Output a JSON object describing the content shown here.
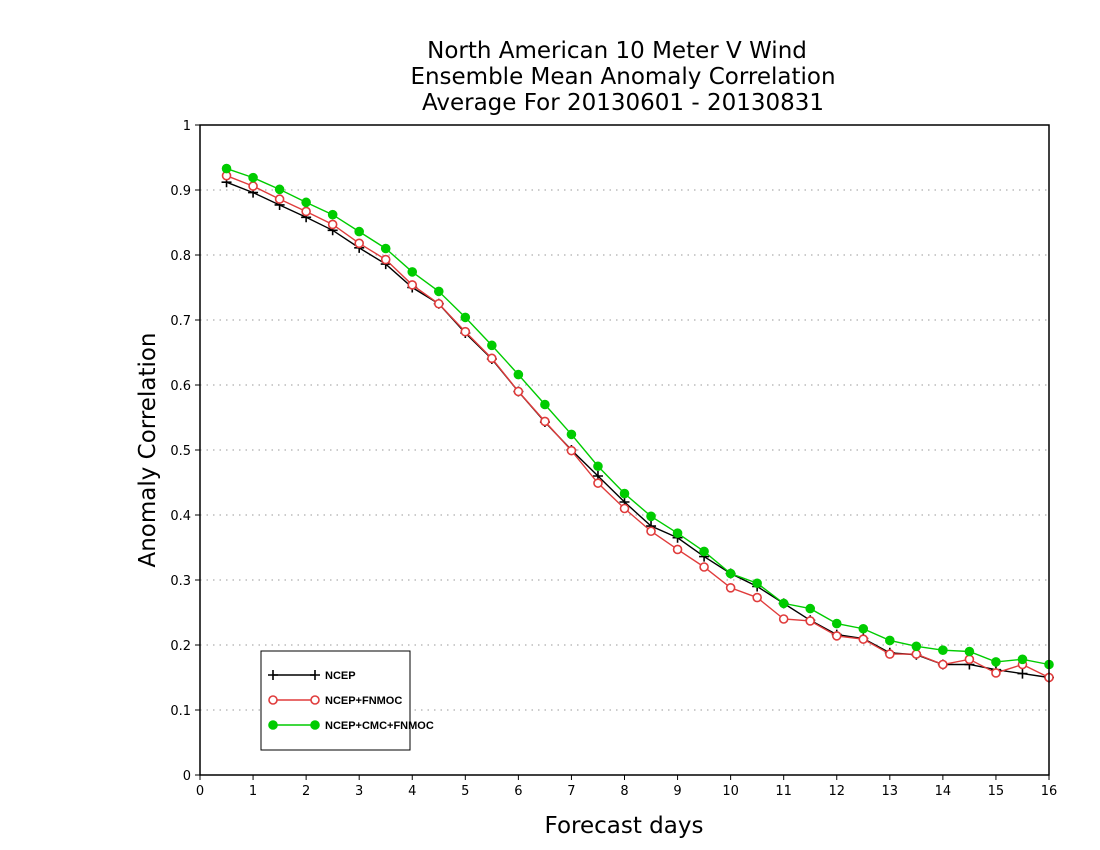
{
  "chart_data": {
    "type": "line",
    "title": [
      "North American 10 Meter V Wind",
      "Ensemble Mean Anomaly Correlation",
      "Average For 20130601 - 20130831"
    ],
    "xlabel": "Forecast days",
    "ylabel": "Anomaly Correlation",
    "xlim": [
      0,
      16
    ],
    "ylim": [
      0,
      1
    ],
    "xticks": [
      "0",
      "1",
      "2",
      "3",
      "4",
      "5",
      "6",
      "7",
      "8",
      "9",
      "10",
      "11",
      "12",
      "13",
      "14",
      "15",
      "16"
    ],
    "yticks": [
      "0",
      "0.1",
      "0.2",
      "0.3",
      "0.4",
      "0.5",
      "0.6",
      "0.7",
      "0.8",
      "0.9",
      "1"
    ],
    "grid": "horizontal-dotted",
    "legend_position": "bottom-left",
    "x": [
      0.5,
      1,
      1.5,
      2,
      2.5,
      3,
      3.5,
      4,
      4.5,
      5,
      5.5,
      6,
      6.5,
      7,
      7.5,
      8,
      8.5,
      9,
      9.5,
      10,
      10.5,
      11,
      11.5,
      12,
      12.5,
      13,
      13.5,
      14,
      14.5,
      15,
      15.5,
      16
    ],
    "series": [
      {
        "name": "NCEP",
        "color": "#000000",
        "marker": "plus",
        "values": [
          0.912,
          0.896,
          0.877,
          0.858,
          0.838,
          0.811,
          0.786,
          0.75,
          0.725,
          0.68,
          0.64,
          0.59,
          0.543,
          0.5,
          0.46,
          0.42,
          0.383,
          0.365,
          0.336,
          0.31,
          0.29,
          0.264,
          0.238,
          0.216,
          0.21,
          0.188,
          0.185,
          0.17,
          0.17,
          0.162,
          0.156,
          0.15
        ]
      },
      {
        "name": "NCEP+FNMOC",
        "color": "#e03c3c",
        "marker": "open-circle",
        "values": [
          0.922,
          0.906,
          0.886,
          0.867,
          0.847,
          0.818,
          0.793,
          0.754,
          0.725,
          0.682,
          0.641,
          0.59,
          0.544,
          0.499,
          0.449,
          0.41,
          0.375,
          0.347,
          0.32,
          0.288,
          0.273,
          0.24,
          0.237,
          0.214,
          0.209,
          0.186,
          0.186,
          0.17,
          0.178,
          0.157,
          0.17,
          0.15
        ]
      },
      {
        "name": "NCEP+CMC+FNMOC",
        "color": "#00cc00",
        "marker": "filled-circle",
        "values": [
          0.933,
          0.919,
          0.901,
          0.881,
          0.862,
          0.836,
          0.81,
          0.774,
          0.744,
          0.704,
          0.661,
          0.616,
          0.57,
          0.524,
          0.475,
          0.433,
          0.398,
          0.372,
          0.344,
          0.31,
          0.295,
          0.264,
          0.256,
          0.233,
          0.225,
          0.207,
          0.198,
          0.192,
          0.19,
          0.174,
          0.178,
          0.17
        ]
      }
    ]
  }
}
